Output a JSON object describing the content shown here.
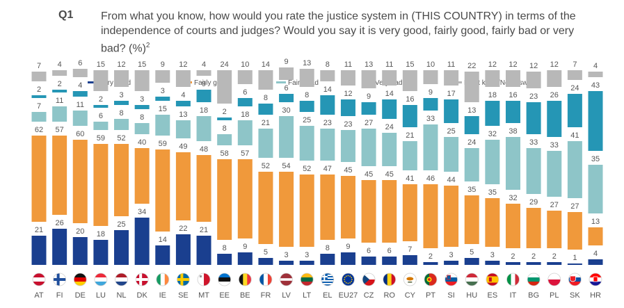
{
  "question": {
    "number": "Q1",
    "text": "From what you know, how would you rate the justice system in (THIS COUNTRY) in terms of the independence of courts and judges? Would you say it is very good, fairly good, fairly bad or very bad? (%)",
    "footnote_mark": "2"
  },
  "colors": {
    "very_good": "#1a3f8f",
    "fairly_good": "#f0993b",
    "fairly_bad": "#8ec5c8",
    "very_bad": "#2596b5",
    "dont_know": "#b8b8b8",
    "label": "#555555"
  },
  "chart_data": {
    "type": "bar",
    "stacked": true,
    "normalized": "100%",
    "legend_position": "top",
    "categories": [
      "AT",
      "FI",
      "DE",
      "LU",
      "NL",
      "DK",
      "IE",
      "SE",
      "MT",
      "EE",
      "BE",
      "FR",
      "LV",
      "LT",
      "EL",
      "EU27",
      "CZ",
      "RO",
      "CY",
      "PT",
      "SI",
      "HU",
      "ES",
      "IT",
      "BG",
      "PL",
      "SK",
      "HR"
    ],
    "series": [
      {
        "key": "very_good",
        "name": "Very good",
        "values": [
          21,
          26,
          20,
          18,
          25,
          34,
          14,
          22,
          21,
          8,
          9,
          5,
          3,
          3,
          8,
          9,
          6,
          6,
          7,
          2,
          3,
          5,
          3,
          2,
          2,
          2,
          1,
          4
        ]
      },
      {
        "key": "fairly_good",
        "name": "Fairly good",
        "values": [
          62,
          57,
          60,
          59,
          52,
          40,
          59,
          49,
          48,
          58,
          57,
          52,
          54,
          52,
          47,
          45,
          45,
          45,
          41,
          46,
          44,
          35,
          35,
          32,
          29,
          27,
          27,
          13
        ]
      },
      {
        "key": "fairly_bad",
        "name": "Fairly bad",
        "values": [
          7,
          11,
          11,
          6,
          8,
          8,
          15,
          13,
          18,
          8,
          18,
          21,
          30,
          25,
          23,
          23,
          27,
          24,
          21,
          33,
          25,
          24,
          32,
          38,
          33,
          33,
          41,
          35
        ]
      },
      {
        "key": "very_bad",
        "name": "Very bad",
        "values": [
          2,
          2,
          4,
          2,
          3,
          3,
          3,
          4,
          9,
          2,
          6,
          8,
          6,
          8,
          14,
          12,
          9,
          14,
          16,
          9,
          17,
          13,
          18,
          16,
          23,
          26,
          24,
          43
        ]
      },
      {
        "key": "dont_know",
        "name": "Don't know/No Answer",
        "values": [
          7,
          4,
          6,
          15,
          12,
          15,
          9,
          12,
          4,
          24,
          10,
          14,
          9,
          13,
          8,
          11,
          13,
          11,
          15,
          10,
          11,
          22,
          12,
          12,
          12,
          12,
          7,
          4
        ]
      }
    ],
    "flag_icons": [
      "austria-flag-icon",
      "finland-flag-icon",
      "germany-flag-icon",
      "luxembourg-flag-icon",
      "netherlands-flag-icon",
      "denmark-flag-icon",
      "ireland-flag-icon",
      "sweden-flag-icon",
      "malta-flag-icon",
      "estonia-flag-icon",
      "belgium-flag-icon",
      "france-flag-icon",
      "latvia-flag-icon",
      "lithuania-flag-icon",
      "greece-flag-icon",
      "eu-flag-icon",
      "czechia-flag-icon",
      "romania-flag-icon",
      "cyprus-flag-icon",
      "portugal-flag-icon",
      "slovenia-flag-icon",
      "hungary-flag-icon",
      "spain-flag-icon",
      "italy-flag-icon",
      "bulgaria-flag-icon",
      "poland-flag-icon",
      "slovakia-flag-icon",
      "croatia-flag-icon"
    ]
  }
}
